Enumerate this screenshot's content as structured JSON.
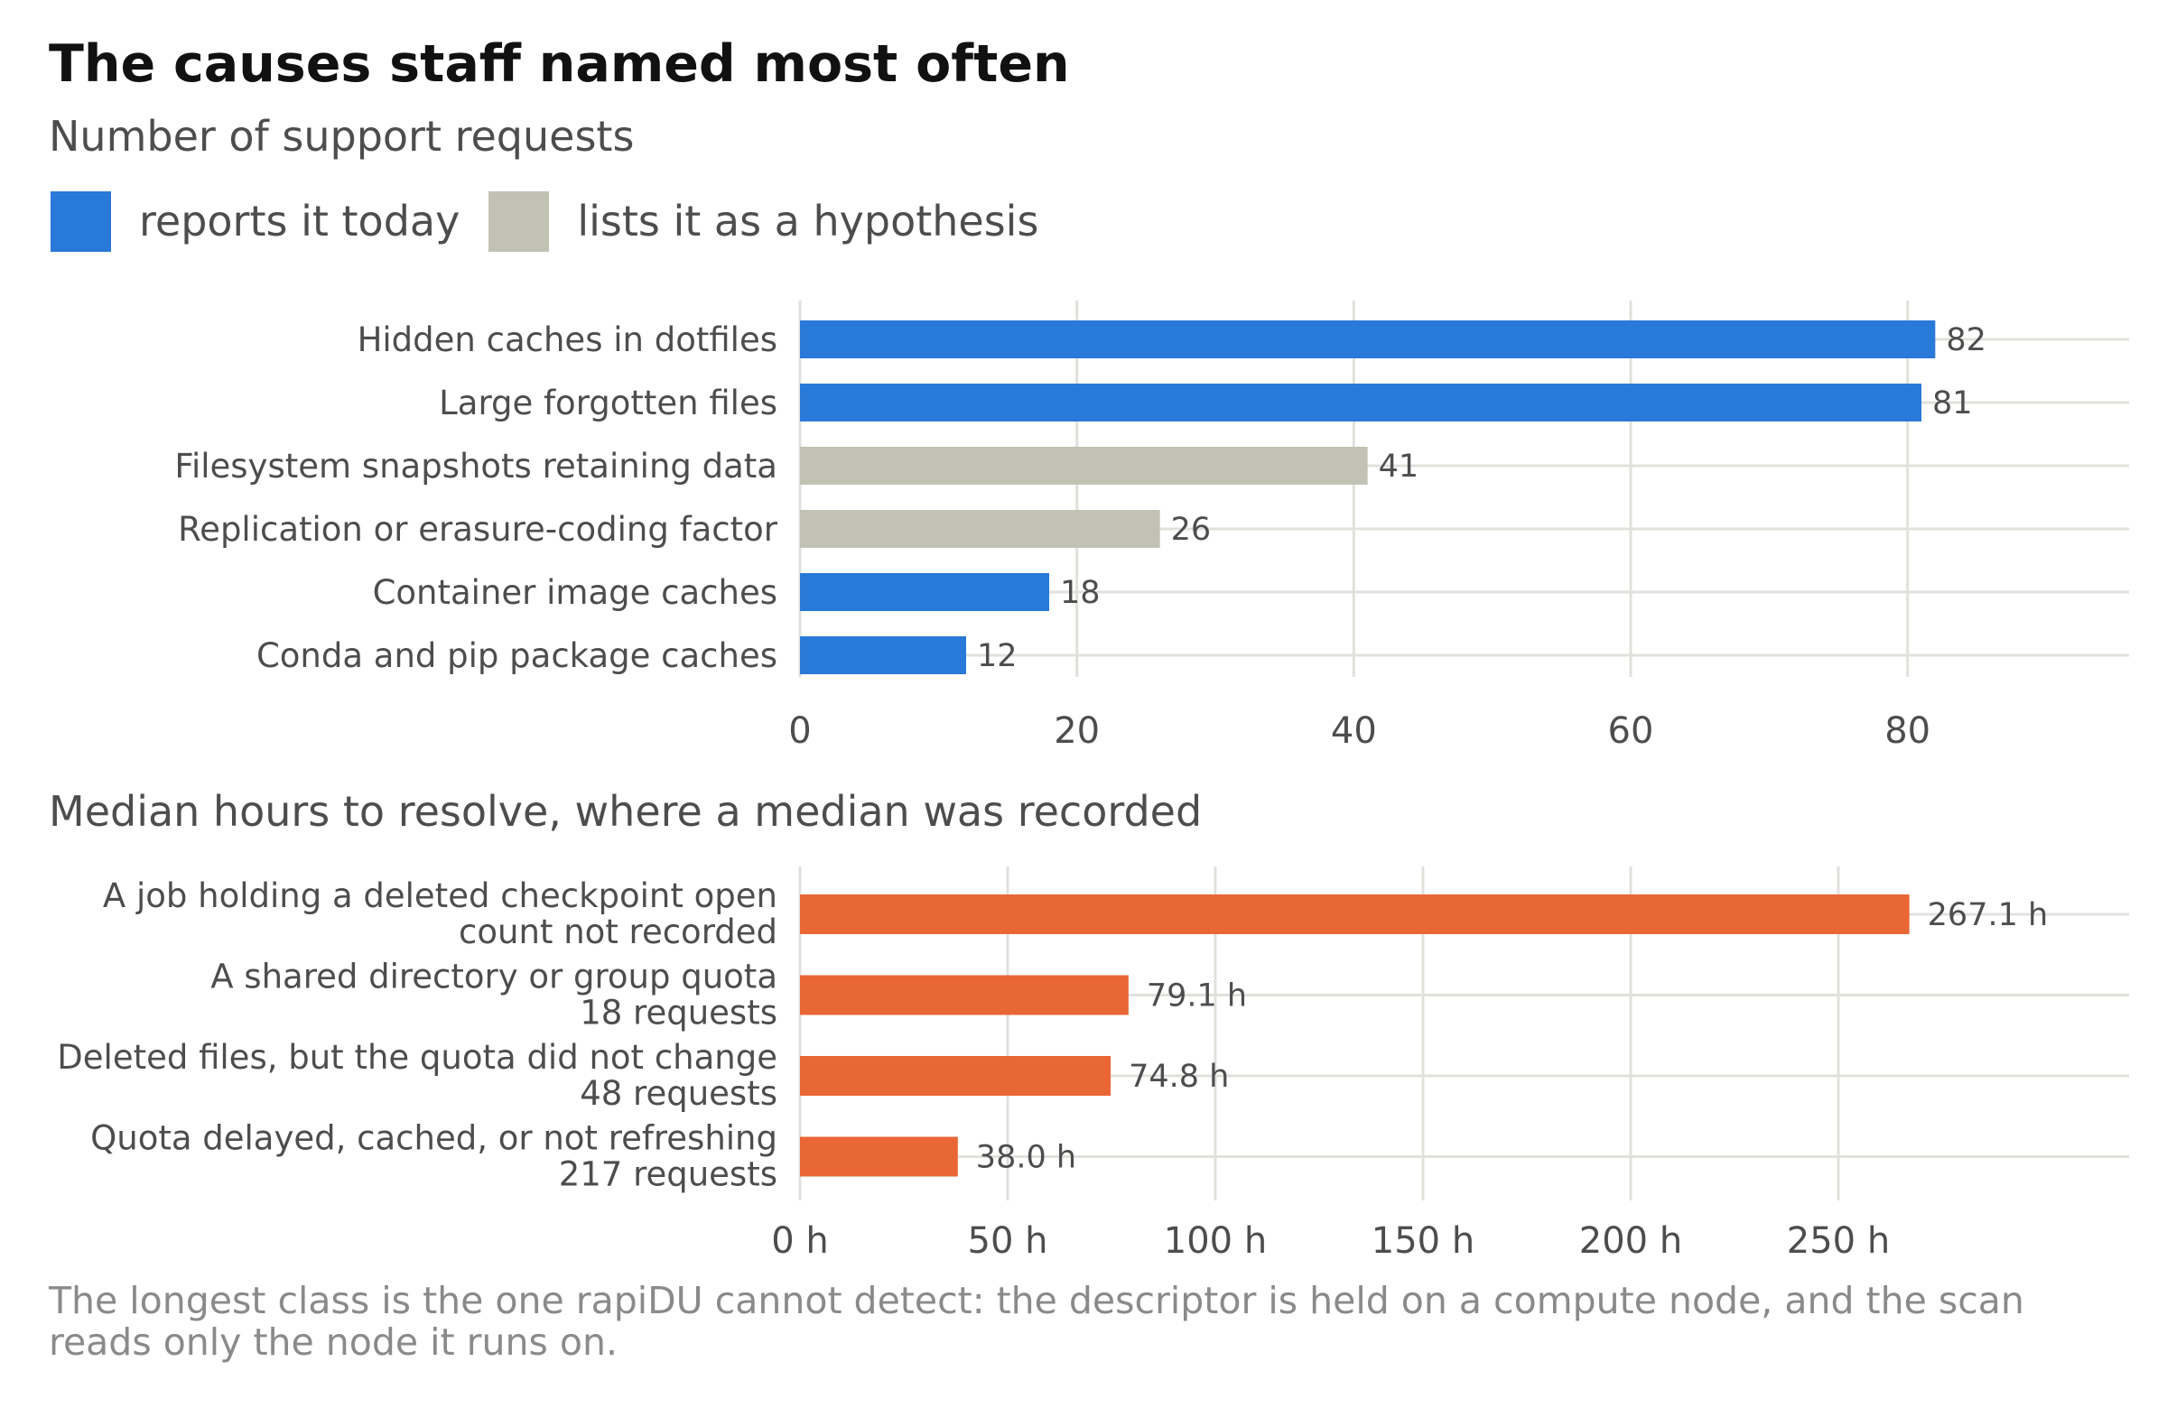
{
  "title": "The causes staff named most often",
  "panel1_subtitle": "Number of support requests",
  "legend": [
    {
      "label": "reports it today",
      "color": "#2979d8"
    },
    {
      "label": "lists it as a hypothesis",
      "color": "#c2c2b4"
    }
  ],
  "panel2_subtitle": "Median hours to resolve, where a median was recorded",
  "footnote": "The longest class is the one rapiDU cannot detect: the descriptor is held on a compute node, and the scan reads only the node it runs on.",
  "chart_data": [
    {
      "type": "bar",
      "orientation": "horizontal",
      "title": "Number of support requests",
      "categories": [
        "Hidden caches in dotfiles",
        "Large forgotten files",
        "Filesystem snapshots retaining data",
        "Replication or erasure-coding factor",
        "Container image caches",
        "Conda and pip package caches"
      ],
      "values": [
        82,
        81,
        41,
        26,
        18,
        12
      ],
      "value_labels": [
        "82",
        "81",
        "41",
        "26",
        "18",
        "12"
      ],
      "groups": [
        "reports it today",
        "reports it today",
        "lists it as a hypothesis",
        "lists it as a hypothesis",
        "reports it today",
        "reports it today"
      ],
      "group_colors": {
        "reports it today": "#2979d8",
        "lists it as a hypothesis": "#c2c2b4"
      },
      "xlim": [
        0,
        96
      ],
      "xticks": [
        0,
        20,
        40,
        60,
        80
      ],
      "xtick_labels": [
        "0",
        "20",
        "40",
        "60",
        "80"
      ],
      "grid": true,
      "legend": "top-left"
    },
    {
      "type": "bar",
      "orientation": "horizontal",
      "title": "Median hours to resolve, where a median was recorded",
      "categories": [
        [
          "A job holding a deleted checkpoint open",
          "count not recorded"
        ],
        [
          "A shared directory or group quota",
          "18 requests"
        ],
        [
          "Deleted files, but the quota did not change",
          "48 requests"
        ],
        [
          "Quota delayed, cached, or not refreshing",
          "217 requests"
        ]
      ],
      "values": [
        267.1,
        79.1,
        74.8,
        38.0
      ],
      "value_labels": [
        "267.1 h",
        "79.1 h",
        "74.8 h",
        "38.0 h"
      ],
      "color": "#e96635",
      "xlim": [
        0,
        320
      ],
      "xticks": [
        0,
        50,
        100,
        150,
        200,
        250
      ],
      "xtick_labels": [
        "0 h",
        "50 h",
        "100 h",
        "150 h",
        "200 h",
        "250 h"
      ],
      "grid": true
    }
  ]
}
